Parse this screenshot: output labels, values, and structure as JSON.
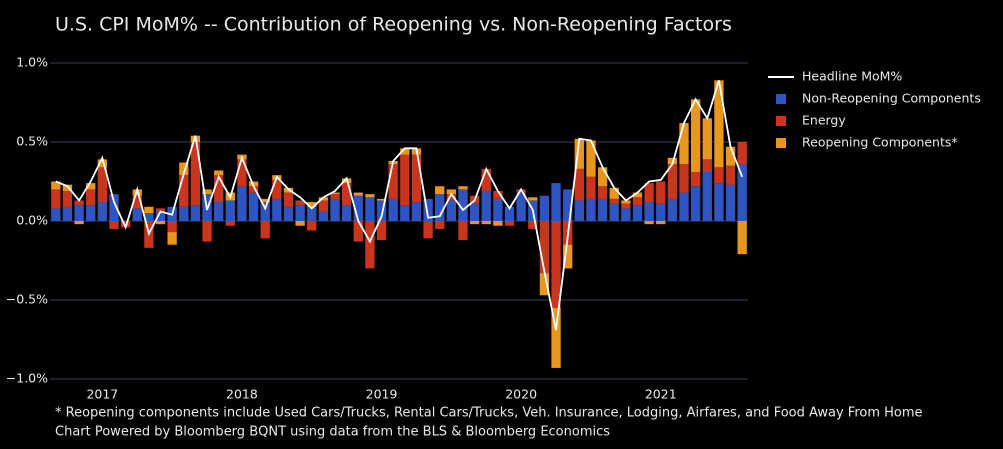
{
  "chart_data": {
    "type": "stacked_bar_line",
    "title": "U.S. CPI MoM% -- Contribution of Reopening vs. Non-Reopening Factors",
    "notes": [
      "* Reopening components include Used Cars/Trucks, Rental Cars/Trucks, Veh. Insurance, Lodging, Airfares, and Food Away From Home",
      "Chart Powered by Bloomberg BQNT using data from the BLS & Bloomberg Economics"
    ],
    "categories": [
      null,
      null,
      null,
      null,
      "2017",
      null,
      null,
      null,
      null,
      null,
      null,
      null,
      null,
      null,
      null,
      null,
      "2018",
      null,
      null,
      null,
      null,
      null,
      null,
      null,
      null,
      null,
      null,
      null,
      "2019",
      null,
      null,
      null,
      null,
      null,
      null,
      null,
      null,
      null,
      null,
      null,
      "2020",
      null,
      null,
      null,
      null,
      null,
      null,
      null,
      null,
      null,
      null,
      null,
      "2021",
      null,
      null,
      null,
      null,
      null,
      null,
      null
    ],
    "series": [
      {
        "name": "Headline MoM%",
        "type": "line",
        "color": "#ffffff",
        "values": [
          0.25,
          0.22,
          0.13,
          0.25,
          0.4,
          0.12,
          -0.04,
          0.2,
          -0.08,
          0.06,
          0.04,
          0.3,
          0.54,
          0.07,
          0.28,
          0.15,
          0.4,
          0.22,
          0.08,
          0.28,
          0.2,
          0.15,
          0.08,
          0.15,
          0.19,
          0.27,
          0.0,
          -0.13,
          0.03,
          0.38,
          0.46,
          0.46,
          0.02,
          0.03,
          0.17,
          0.07,
          0.13,
          0.33,
          0.19,
          0.08,
          0.2,
          0.07,
          -0.32,
          -0.69,
          -0.1,
          0.52,
          0.51,
          0.34,
          0.21,
          0.13,
          0.18,
          0.25,
          0.26,
          0.36,
          0.62,
          0.77,
          0.65,
          0.89,
          0.47,
          0.28
        ]
      },
      {
        "name": "Non-Reopening Components",
        "type": "bar",
        "color": "#2f56c0",
        "values": [
          0.08,
          0.09,
          0.1,
          0.1,
          0.12,
          0.17,
          0.0,
          0.08,
          0.05,
          0.06,
          0.09,
          0.09,
          0.1,
          0.17,
          0.12,
          0.13,
          0.22,
          0.18,
          0.12,
          0.14,
          0.09,
          0.1,
          0.09,
          0.06,
          0.14,
          0.1,
          0.16,
          0.15,
          0.13,
          0.14,
          0.1,
          0.12,
          0.14,
          0.17,
          0.13,
          0.2,
          0.11,
          0.19,
          0.14,
          0.09,
          0.18,
          0.13,
          0.16,
          0.24,
          0.2,
          0.13,
          0.14,
          0.14,
          0.11,
          0.08,
          0.1,
          0.12,
          0.11,
          0.14,
          0.18,
          0.22,
          0.31,
          0.24,
          0.23,
          0.36
        ]
      },
      {
        "name": "Energy",
        "type": "bar",
        "color": "#c9351d",
        "values": [
          0.12,
          0.1,
          0.03,
          0.1,
          0.22,
          -0.05,
          -0.04,
          0.08,
          -0.17,
          0.02,
          -0.07,
          0.2,
          0.4,
          -0.13,
          0.17,
          -0.03,
          0.17,
          0.04,
          -0.11,
          0.12,
          0.09,
          0.03,
          -0.06,
          0.07,
          0.03,
          0.14,
          -0.13,
          -0.3,
          -0.12,
          0.22,
          0.32,
          0.3,
          -0.11,
          -0.05,
          0.04,
          -0.12,
          0.05,
          0.14,
          0.05,
          -0.03,
          0.02,
          -0.05,
          -0.33,
          -0.55,
          -0.15,
          0.2,
          0.14,
          0.08,
          0.03,
          0.03,
          0.05,
          0.12,
          0.14,
          0.22,
          0.18,
          0.09,
          0.08,
          0.1,
          0.12,
          0.14
        ]
      },
      {
        "name": "Reopening Components*",
        "type": "bar",
        "color": "#e8961c",
        "values": [
          0.05,
          0.04,
          -0.02,
          0.04,
          0.05,
          0.0,
          0.0,
          0.04,
          0.04,
          -0.02,
          -0.08,
          0.08,
          0.04,
          0.03,
          0.03,
          0.05,
          0.03,
          0.03,
          0.02,
          0.03,
          0.03,
          -0.03,
          0.03,
          0.02,
          0.01,
          0.03,
          0.02,
          0.02,
          0.01,
          0.02,
          0.04,
          0.04,
          0.0,
          0.05,
          0.03,
          0.02,
          -0.02,
          -0.02,
          -0.03,
          0.0,
          0.0,
          0.02,
          -0.14,
          -0.38,
          -0.15,
          0.19,
          0.23,
          0.12,
          0.07,
          0.02,
          0.03,
          -0.02,
          -0.02,
          0.04,
          0.26,
          0.46,
          0.26,
          0.55,
          0.12,
          -0.21
        ]
      }
    ],
    "ylim": [
      -1.0,
      1.0
    ],
    "yticks": [
      {
        "value": 1.0,
        "label": "1.0%"
      },
      {
        "value": 0.5,
        "label": "0.5%"
      },
      {
        "value": 0.0,
        "label": "0.0%"
      },
      {
        "value": -0.5,
        "label": "−0.5%"
      },
      {
        "value": -1.0,
        "label": "−1.0%"
      }
    ],
    "grid": true,
    "legend": "right"
  }
}
